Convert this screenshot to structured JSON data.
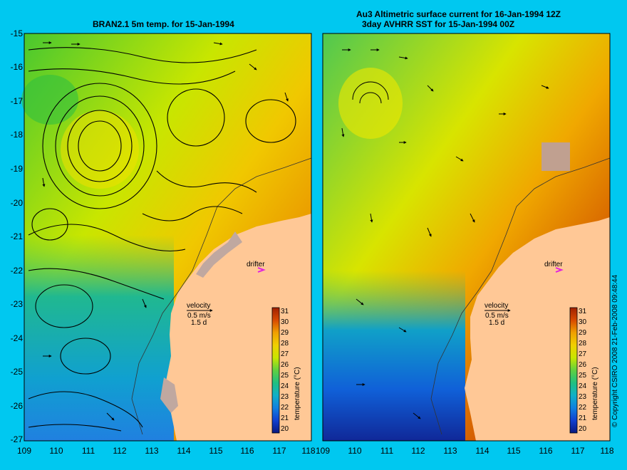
{
  "left_panel": {
    "title": "BRAN2.1 5m temp. for 15-Jan-1994",
    "drifter_label": "drifter",
    "velocity_label": "velocity",
    "velocity_scale": "0.5 m/s",
    "velocity_time": "1.5 d"
  },
  "right_panel": {
    "title_line1": "Au3 Altimetric surface current for 16-Jan-1994 12Z",
    "title_line2": "3day AVHRR SST for 15-Jan-1994 00Z",
    "drifter_label": "drifter",
    "velocity_label": "velocity",
    "velocity_scale": "0.5 m/s",
    "velocity_time": "1.5 d"
  },
  "colorbar": {
    "label": "temperature (°C)",
    "ticks": [
      "31",
      "30",
      "29",
      "28",
      "27",
      "26",
      "25",
      "24",
      "23",
      "22",
      "21",
      "20"
    ],
    "colors": [
      "#c03000",
      "#d84a00",
      "#e87800",
      "#f0a000",
      "#f0d000",
      "#c8e600",
      "#60d040",
      "#20c080",
      "#10b0c8",
      "#1080e0",
      "#1040d0",
      "#081880"
    ]
  },
  "axes": {
    "y_ticks": [
      "-15",
      "-16",
      "-17",
      "-18",
      "-19",
      "-20",
      "-21",
      "-22",
      "-23",
      "-24",
      "-25",
      "-26",
      "-27"
    ],
    "x_ticks": [
      "109",
      "110",
      "111",
      "112",
      "113",
      "114",
      "115",
      "116",
      "117",
      "118"
    ]
  },
  "copyright": "© Copyright CSIRO 2008   21-Feb-2008 09:48:44",
  "chart_data": {
    "type": "heatmap",
    "xlabel": "",
    "ylabel": "",
    "xlim": [
      109,
      118
    ],
    "ylim": [
      -27,
      -15
    ],
    "colorbar_range": [
      20,
      31
    ],
    "colorbar_label": "temperature (°C)"
  }
}
